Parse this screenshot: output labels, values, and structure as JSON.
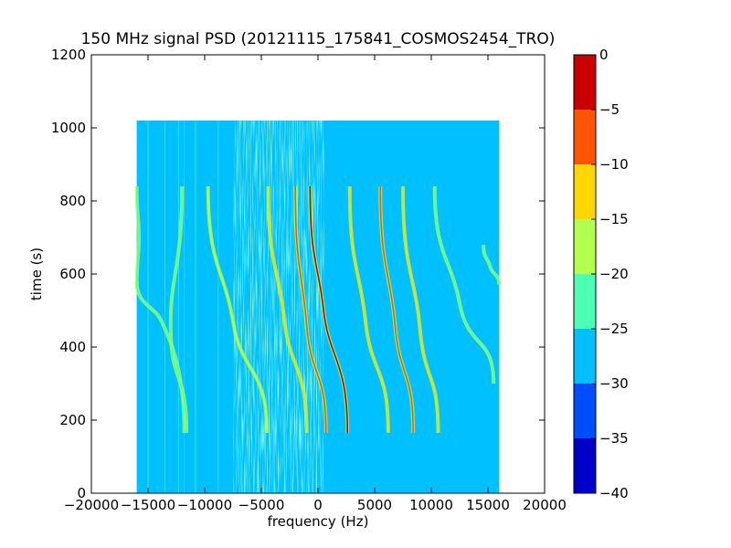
{
  "chart_data": {
    "type": "heatmap",
    "title": "150 MHz signal PSD (20121115_175841_COSMOS2454_TRO)",
    "xlabel": "frequency (Hz)",
    "ylabel": "time (s)",
    "xlim": [
      -20000,
      20000
    ],
    "ylim": [
      0,
      1200
    ],
    "x_ticks": [
      -20000,
      -15000,
      -10000,
      -5000,
      0,
      5000,
      10000,
      15000,
      20000
    ],
    "y_ticks": [
      0,
      200,
      400,
      600,
      800,
      1000,
      1200
    ],
    "data_extent": {
      "x": [
        -16000,
        16000
      ],
      "y": [
        0,
        1020
      ]
    },
    "background_level": -27.5,
    "noise_band": {
      "x_from": -7500,
      "x_to": 500,
      "level": -22.5
    },
    "colormap": "jet",
    "colorbar": {
      "ticks": [
        0,
        -5,
        -10,
        -15,
        -20,
        -25,
        -30,
        -35,
        -40
      ],
      "levels": [
        {
          "from": -40,
          "to": -35,
          "color": "#0000c8"
        },
        {
          "from": -35,
          "to": -30,
          "color": "#004dff"
        },
        {
          "from": -30,
          "to": -25,
          "color": "#00c0ff"
        },
        {
          "from": -25,
          "to": -20,
          "color": "#4dffb3"
        },
        {
          "from": -20,
          "to": -15,
          "color": "#b3ff4d"
        },
        {
          "from": -15,
          "to": -10,
          "color": "#ffd600"
        },
        {
          "from": -10,
          "to": -5,
          "color": "#ff5500"
        },
        {
          "from": -5,
          "to": 0,
          "color": "#c80000"
        }
      ]
    },
    "traces": [
      {
        "t_start": 840,
        "t_end": 560,
        "f_top": -16000,
        "f_bottom": -16000,
        "f_mid": -15800,
        "t_mid": 700,
        "peak_level": -22.5
      },
      {
        "t_start": 580,
        "t_end": 165,
        "f_top": -16000,
        "f_bottom": -11800,
        "f_mid": -13800,
        "t_mid": 470,
        "peak_level": -22.5
      },
      {
        "t_start": 840,
        "t_end": 165,
        "f_top": -12000,
        "f_bottom": -11600,
        "f_mid": -13000,
        "t_mid": 450,
        "peak_level": -22.5
      },
      {
        "t_start": 840,
        "t_end": 165,
        "f_top": -9700,
        "f_bottom": -4500,
        "f_mid": -7500,
        "t_mid": 470,
        "peak_level": -17.5
      },
      {
        "t_start": 840,
        "t_end": 165,
        "f_top": -4400,
        "f_bottom": -1000,
        "f_mid": -3000,
        "t_mid": 480,
        "peak_level": -12.5
      },
      {
        "t_start": 840,
        "t_end": 165,
        "f_top": -2000,
        "f_bottom": 700,
        "f_mid": -1000,
        "t_mid": 460,
        "peak_level": -7.5
      },
      {
        "t_start": 840,
        "t_end": 165,
        "f_top": -700,
        "f_bottom": 2600,
        "f_mid": 500,
        "t_mid": 500,
        "peak_level": -2.5
      },
      {
        "t_start": 840,
        "t_end": 165,
        "f_top": 2800,
        "f_bottom": 6200,
        "f_mid": 4200,
        "t_mid": 470,
        "peak_level": -12.5
      },
      {
        "t_start": 840,
        "t_end": 165,
        "f_top": 5500,
        "f_bottom": 8400,
        "f_mid": 6800,
        "t_mid": 460,
        "peak_level": -7.5
      },
      {
        "t_start": 840,
        "t_end": 165,
        "f_top": 7500,
        "f_bottom": 10600,
        "f_mid": 9000,
        "t_mid": 450,
        "peak_level": -12.5
      },
      {
        "t_start": 840,
        "t_end": 300,
        "f_top": 10300,
        "f_bottom": 15500,
        "f_mid": 12500,
        "t_mid": 520,
        "peak_level": -22.5
      },
      {
        "t_start": 680,
        "t_end": 570,
        "f_top": 14600,
        "f_bottom": 16000,
        "f_mid": 15200,
        "t_mid": 620,
        "peak_level": -22.5
      }
    ]
  }
}
